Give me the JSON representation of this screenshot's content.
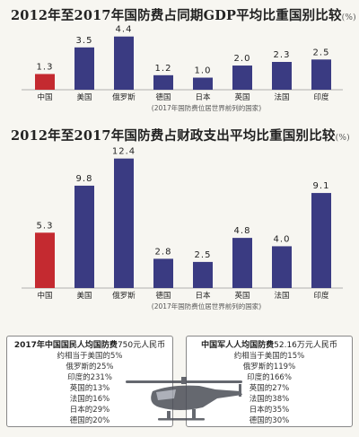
{
  "chart_data": [
    {
      "type": "bar",
      "title": "2012年至2017年国防费占同期GDP平均比重国别比较",
      "unit": "(%)",
      "categories": [
        "中国",
        "美国",
        "俄罗斯",
        "德国",
        "日本",
        "英国",
        "法国",
        "印度"
      ],
      "values": [
        1.3,
        3.5,
        4.4,
        1.2,
        1.0,
        2.0,
        2.3,
        2.5
      ],
      "value_labels": [
        "1.3",
        "3.5",
        "4.4",
        "1.2",
        "1.0",
        "2.0",
        "2.3",
        "2.5"
      ],
      "ylim": [
        0,
        4.6
      ],
      "note": "(2017年国防费位居世界前列的国家)",
      "colors": {
        "highlight": "#c42a30",
        "bar": "#3a3b82"
      }
    },
    {
      "type": "bar",
      "title": "2012年至2017年国防费占财政支出平均比重国别比较",
      "unit": "(%)",
      "categories": [
        "中国",
        "美国",
        "俄罗斯",
        "德国",
        "日本",
        "英国",
        "法国",
        "印度"
      ],
      "values": [
        5.3,
        9.8,
        12.4,
        2.8,
        2.5,
        4.8,
        4.0,
        9.1
      ],
      "value_labels": [
        "5.3",
        "9.8",
        "12.4",
        "2.8",
        "2.5",
        "4.8",
        "4.0",
        "9.1"
      ],
      "ylim": [
        0,
        12.8
      ],
      "note": "(2017年国防费位居世界前列的国家)",
      "colors": {
        "highlight": "#c42a30",
        "bar": "#3a3b82"
      }
    }
  ],
  "box_left": {
    "title_bold": "2017年中国国民人均国防费",
    "title_rest": "750元人民币",
    "lines": [
      "约相当于美国的5%",
      "俄罗斯的25%",
      "印度的231%",
      "英国的13%",
      "法国的16%",
      "日本的29%",
      "德国的20%"
    ]
  },
  "box_right": {
    "title_bold": "中国军人人均国防费",
    "title_rest": "52.16万元人民币",
    "lines": [
      "约相当于美国的15%",
      "俄罗斯的119%",
      "印度的166%",
      "英国的27%",
      "法国的38%",
      "日本的35%",
      "德国的30%"
    ]
  }
}
